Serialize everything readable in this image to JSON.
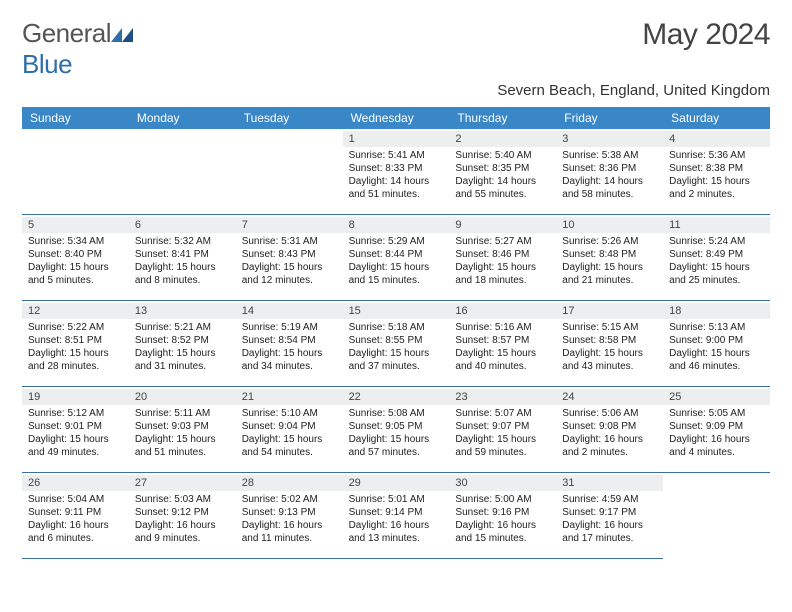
{
  "brand": {
    "name_part1": "General",
    "name_part2": "Blue"
  },
  "title": "May 2024",
  "location": "Severn Beach, England, United Kingdom",
  "colors": {
    "header_bg": "#3a87c7",
    "header_text": "#ffffff",
    "cell_border": "#3a6fa0",
    "daynum_bg": "#eceeef",
    "body_text": "#222222",
    "logo_gray": "#555555",
    "logo_blue": "#2f6fa8"
  },
  "weekdays": [
    "Sunday",
    "Monday",
    "Tuesday",
    "Wednesday",
    "Thursday",
    "Friday",
    "Saturday"
  ],
  "grid": {
    "first_weekday_index": 3,
    "days_in_month": 31
  },
  "days": {
    "1": {
      "sunrise": "5:41 AM",
      "sunset": "8:33 PM",
      "daylight": "14 hours and 51 minutes."
    },
    "2": {
      "sunrise": "5:40 AM",
      "sunset": "8:35 PM",
      "daylight": "14 hours and 55 minutes."
    },
    "3": {
      "sunrise": "5:38 AM",
      "sunset": "8:36 PM",
      "daylight": "14 hours and 58 minutes."
    },
    "4": {
      "sunrise": "5:36 AM",
      "sunset": "8:38 PM",
      "daylight": "15 hours and 2 minutes."
    },
    "5": {
      "sunrise": "5:34 AM",
      "sunset": "8:40 PM",
      "daylight": "15 hours and 5 minutes."
    },
    "6": {
      "sunrise": "5:32 AM",
      "sunset": "8:41 PM",
      "daylight": "15 hours and 8 minutes."
    },
    "7": {
      "sunrise": "5:31 AM",
      "sunset": "8:43 PM",
      "daylight": "15 hours and 12 minutes."
    },
    "8": {
      "sunrise": "5:29 AM",
      "sunset": "8:44 PM",
      "daylight": "15 hours and 15 minutes."
    },
    "9": {
      "sunrise": "5:27 AM",
      "sunset": "8:46 PM",
      "daylight": "15 hours and 18 minutes."
    },
    "10": {
      "sunrise": "5:26 AM",
      "sunset": "8:48 PM",
      "daylight": "15 hours and 21 minutes."
    },
    "11": {
      "sunrise": "5:24 AM",
      "sunset": "8:49 PM",
      "daylight": "15 hours and 25 minutes."
    },
    "12": {
      "sunrise": "5:22 AM",
      "sunset": "8:51 PM",
      "daylight": "15 hours and 28 minutes."
    },
    "13": {
      "sunrise": "5:21 AM",
      "sunset": "8:52 PM",
      "daylight": "15 hours and 31 minutes."
    },
    "14": {
      "sunrise": "5:19 AM",
      "sunset": "8:54 PM",
      "daylight": "15 hours and 34 minutes."
    },
    "15": {
      "sunrise": "5:18 AM",
      "sunset": "8:55 PM",
      "daylight": "15 hours and 37 minutes."
    },
    "16": {
      "sunrise": "5:16 AM",
      "sunset": "8:57 PM",
      "daylight": "15 hours and 40 minutes."
    },
    "17": {
      "sunrise": "5:15 AM",
      "sunset": "8:58 PM",
      "daylight": "15 hours and 43 minutes."
    },
    "18": {
      "sunrise": "5:13 AM",
      "sunset": "9:00 PM",
      "daylight": "15 hours and 46 minutes."
    },
    "19": {
      "sunrise": "5:12 AM",
      "sunset": "9:01 PM",
      "daylight": "15 hours and 49 minutes."
    },
    "20": {
      "sunrise": "5:11 AM",
      "sunset": "9:03 PM",
      "daylight": "15 hours and 51 minutes."
    },
    "21": {
      "sunrise": "5:10 AM",
      "sunset": "9:04 PM",
      "daylight": "15 hours and 54 minutes."
    },
    "22": {
      "sunrise": "5:08 AM",
      "sunset": "9:05 PM",
      "daylight": "15 hours and 57 minutes."
    },
    "23": {
      "sunrise": "5:07 AM",
      "sunset": "9:07 PM",
      "daylight": "15 hours and 59 minutes."
    },
    "24": {
      "sunrise": "5:06 AM",
      "sunset": "9:08 PM",
      "daylight": "16 hours and 2 minutes."
    },
    "25": {
      "sunrise": "5:05 AM",
      "sunset": "9:09 PM",
      "daylight": "16 hours and 4 minutes."
    },
    "26": {
      "sunrise": "5:04 AM",
      "sunset": "9:11 PM",
      "daylight": "16 hours and 6 minutes."
    },
    "27": {
      "sunrise": "5:03 AM",
      "sunset": "9:12 PM",
      "daylight": "16 hours and 9 minutes."
    },
    "28": {
      "sunrise": "5:02 AM",
      "sunset": "9:13 PM",
      "daylight": "16 hours and 11 minutes."
    },
    "29": {
      "sunrise": "5:01 AM",
      "sunset": "9:14 PM",
      "daylight": "16 hours and 13 minutes."
    },
    "30": {
      "sunrise": "5:00 AM",
      "sunset": "9:16 PM",
      "daylight": "16 hours and 15 minutes."
    },
    "31": {
      "sunrise": "4:59 AM",
      "sunset": "9:17 PM",
      "daylight": "16 hours and 17 minutes."
    }
  },
  "labels": {
    "sunrise": "Sunrise:",
    "sunset": "Sunset:",
    "daylight": "Daylight:"
  }
}
